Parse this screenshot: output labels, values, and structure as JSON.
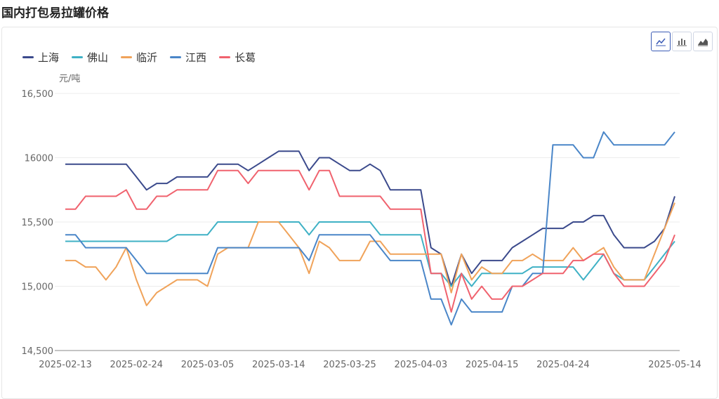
{
  "page": {
    "title": "国内打包易拉罐价格"
  },
  "toolbar": {
    "buttons": [
      {
        "name": "line-chart-icon",
        "active": true
      },
      {
        "name": "bar-chart-icon",
        "active": false
      },
      {
        "name": "area-chart-icon",
        "active": false
      }
    ]
  },
  "chart_data": {
    "type": "line",
    "ylabel": "元/吨",
    "ylim": [
      14500,
      16500
    ],
    "yticks": [
      "16,500",
      "16000",
      "15,500",
      "15,000",
      "14,500"
    ],
    "ytick_values": [
      16500,
      16000,
      15500,
      15000,
      14500
    ],
    "x": [
      "2025-02-13",
      "2025-02-14",
      "2025-02-17",
      "2025-02-18",
      "2025-02-19",
      "2025-02-20",
      "2025-02-21",
      "2025-02-24",
      "2025-02-25",
      "2025-02-26",
      "2025-02-27",
      "2025-02-28",
      "2025-03-03",
      "2025-03-04",
      "2025-03-05",
      "2025-03-06",
      "2025-03-07",
      "2025-03-10",
      "2025-03-11",
      "2025-03-12",
      "2025-03-13",
      "2025-03-14",
      "2025-03-17",
      "2025-03-18",
      "2025-03-19",
      "2025-03-20",
      "2025-03-21",
      "2025-03-24",
      "2025-03-25",
      "2025-03-26",
      "2025-03-27",
      "2025-03-28",
      "2025-03-31",
      "2025-04-01",
      "2025-04-02",
      "2025-04-03",
      "2025-04-07",
      "2025-04-08",
      "2025-04-09",
      "2025-04-10",
      "2025-04-11",
      "2025-04-14",
      "2025-04-15",
      "2025-04-16",
      "2025-04-17",
      "2025-04-18",
      "2025-04-21",
      "2025-04-22",
      "2025-04-23",
      "2025-04-24",
      "2025-04-25",
      "2025-04-28",
      "2025-04-29",
      "2025-04-30",
      "2025-05-06",
      "2025-05-07",
      "2025-05-08",
      "2025-05-09",
      "2025-05-12",
      "2025-05-13",
      "2025-05-14"
    ],
    "xtick_labels": [
      "2025-02-13",
      "2025-02-24",
      "2025-03-05",
      "2025-03-14",
      "2025-03-25",
      "2025-04-03",
      "2025-04-15",
      "2025-04-24",
      "2025-05-14"
    ],
    "series": [
      {
        "name": "上海",
        "color": "#3b4a8c",
        "values": [
          15950,
          15950,
          15950,
          15950,
          15950,
          15950,
          15950,
          15850,
          15750,
          15800,
          15800,
          15850,
          15850,
          15850,
          15850,
          15950,
          15950,
          15950,
          15900,
          15950,
          16000,
          16050,
          16050,
          16050,
          15900,
          16000,
          16000,
          15950,
          15900,
          15900,
          15950,
          15900,
          15750,
          15750,
          15750,
          15750,
          15300,
          15250,
          15000,
          15250,
          15100,
          15200,
          15200,
          15200,
          15300,
          15350,
          15400,
          15450,
          15450,
          15450,
          15500,
          15500,
          15550,
          15550,
          15400,
          15300,
          15300,
          15300,
          15350,
          15450,
          15700
        ]
      },
      {
        "name": "佛山",
        "color": "#3fb1c5",
        "values": [
          15350,
          15350,
          15350,
          15350,
          15350,
          15350,
          15350,
          15350,
          15350,
          15350,
          15350,
          15400,
          15400,
          15400,
          15400,
          15500,
          15500,
          15500,
          15500,
          15500,
          15500,
          15500,
          15500,
          15500,
          15400,
          15500,
          15500,
          15500,
          15500,
          15500,
          15500,
          15400,
          15400,
          15400,
          15400,
          15400,
          15100,
          15100,
          15000,
          15100,
          15000,
          15100,
          15100,
          15100,
          15100,
          15100,
          15150,
          15150,
          15150,
          15150,
          15150,
          15050,
          15150,
          15250,
          15100,
          15050,
          15050,
          15050,
          15150,
          15250,
          15350
        ]
      },
      {
        "name": "临沂",
        "color": "#f0a35a",
        "values": [
          15200,
          15200,
          15150,
          15150,
          15050,
          15150,
          15300,
          15050,
          14850,
          14950,
          15000,
          15050,
          15050,
          15050,
          15000,
          15250,
          15300,
          15300,
          15300,
          15500,
          15500,
          15500,
          15400,
          15300,
          15100,
          15350,
          15300,
          15200,
          15200,
          15200,
          15350,
          15350,
          15250,
          15250,
          15250,
          15250,
          15250,
          15250,
          14950,
          15250,
          15050,
          15150,
          15100,
          15100,
          15200,
          15200,
          15250,
          15200,
          15200,
          15200,
          15300,
          15200,
          15250,
          15300,
          15150,
          15050,
          15050,
          15050,
          15250,
          15450,
          15650
        ]
      },
      {
        "name": "江西",
        "color": "#4a86c8",
        "values": [
          15400,
          15400,
          15300,
          15300,
          15300,
          15300,
          15300,
          15200,
          15100,
          15100,
          15100,
          15100,
          15100,
          15100,
          15100,
          15300,
          15300,
          15300,
          15300,
          15300,
          15300,
          15300,
          15300,
          15300,
          15200,
          15400,
          15400,
          15400,
          15400,
          15400,
          15400,
          15300,
          15200,
          15200,
          15200,
          15200,
          14900,
          14900,
          14700,
          14900,
          14800,
          14800,
          14800,
          14800,
          15000,
          15000,
          15100,
          15100,
          16100,
          16100,
          16100,
          16000,
          16000,
          16200,
          16100,
          16100,
          16100,
          16100,
          16100,
          16100,
          16200
        ]
      },
      {
        "name": "长葛",
        "color": "#f0626e",
        "values": [
          15600,
          15600,
          15700,
          15700,
          15700,
          15700,
          15750,
          15600,
          15600,
          15700,
          15700,
          15750,
          15750,
          15750,
          15750,
          15900,
          15900,
          15900,
          15800,
          15900,
          15900,
          15900,
          15900,
          15900,
          15750,
          15900,
          15900,
          15700,
          15700,
          15700,
          15700,
          15700,
          15600,
          15600,
          15600,
          15600,
          15100,
          15100,
          14800,
          15100,
          14900,
          15000,
          14900,
          14900,
          15000,
          15000,
          15050,
          15100,
          15100,
          15100,
          15200,
          15200,
          15250,
          15250,
          15100,
          15000,
          15000,
          15000,
          15100,
          15200,
          15400
        ]
      }
    ]
  }
}
